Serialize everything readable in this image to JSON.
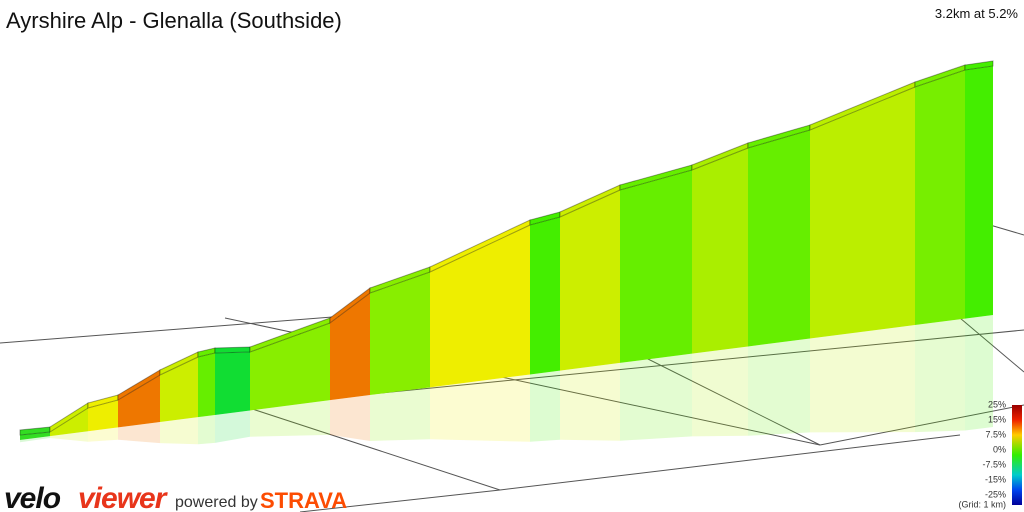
{
  "header": {
    "title": "Ayrshire Alp - Glenalla (Southside)",
    "summary": "3.2km at 5.2%"
  },
  "legend": {
    "ticks": [
      "25%",
      "15%",
      "7.5%",
      "0%",
      "-7.5%",
      "-15%",
      "-25%"
    ],
    "grid_note": "(Grid: 1 km)"
  },
  "footer": {
    "brand_a": "velo",
    "brand_b": "viewer",
    "powered": "powered by",
    "strava": "STRAVA"
  }
}
